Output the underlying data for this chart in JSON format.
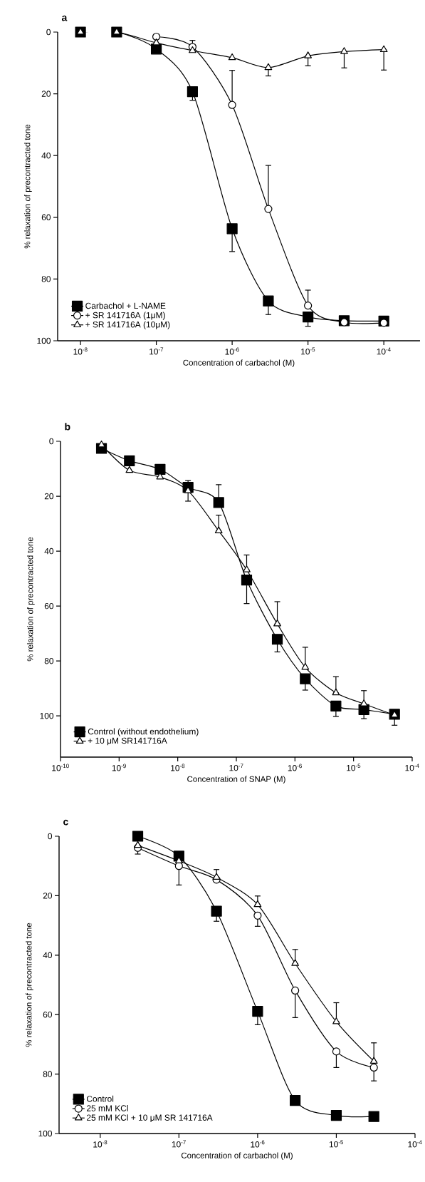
{
  "chart_data": [
    {
      "type": "line",
      "title": "a",
      "xlabel": "Concentration of carbachol (M)",
      "ylabel": "% relaxation of precontracted tone",
      "log": "x",
      "legend": "bottom left",
      "line_style": "solid",
      "xlim": [
        5e-09,
        0.0003
      ],
      "ylim": [
        100,
        0
      ],
      "xticks": [
        {
          "value": 1e-08,
          "label": "10$^{-8}$"
        },
        {
          "value": 1e-07,
          "label": "10$^{-7}$"
        },
        {
          "value": 1e-06,
          "label": "10$^{-6}$"
        },
        {
          "value": 1e-05,
          "label": "10$^{-5}$"
        },
        {
          "value": 0.0001,
          "label": "10$^{-4}$"
        }
      ],
      "yticks": [
        0,
        20,
        40,
        60,
        80,
        100
      ],
      "series": [
        {
          "name": "Carbachol + L-NAME",
          "color": "#000000",
          "marker": "square",
          "x": [
            1e-08,
            3e-08,
            1e-07,
            3e-07,
            1e-06,
            3e-06,
            1e-05,
            3e-05,
            0.0001
          ],
          "values": [
            0,
            0,
            5.5,
            19.3,
            63.7,
            87.1,
            92.3,
            93.5,
            93.6
          ],
          "errors": [
            null,
            null,
            null,
            [
              19.3,
              22.1
            ],
            [
              63.7,
              71.1
            ],
            [
              87.1,
              91.5
            ],
            [
              92.3,
              95.3
            ],
            null,
            null
          ]
        },
        {
          "name": "+ SR 141716A (1μM)",
          "color": "#000000",
          "marker": "circle",
          "x": [
            1e-07,
            3e-07,
            1e-06,
            3e-06,
            1e-05,
            3e-05,
            0.0001
          ],
          "values": [
            1.5,
            4.8,
            23.6,
            57.3,
            88.6,
            94.0,
            94.2
          ],
          "errors": [
            null,
            [
              2.7,
              4.8
            ],
            [
              12.4,
              23.6
            ],
            [
              43.2,
              57.3
            ],
            [
              83.6,
              88.6
            ],
            null,
            null
          ]
        },
        {
          "name": "+ SR 141716A (10μM)",
          "color": "#000000",
          "marker": "triangle",
          "x": [
            1e-08,
            3e-08,
            1e-07,
            3e-07,
            1e-06,
            3e-06,
            1e-05,
            3e-05,
            0.0001
          ],
          "values": [
            0,
            0,
            3.5,
            6.0,
            8.3,
            11.5,
            7.7,
            6.3,
            5.7
          ],
          "errors": [
            null,
            null,
            null,
            null,
            null,
            [
              11.5,
              14.2
            ],
            [
              7.7,
              10.9
            ],
            [
              6.3,
              11.6
            ],
            [
              5.7,
              12.3
            ]
          ]
        }
      ]
    },
    {
      "type": "line",
      "title": "b",
      "xlabel": "Concentration of SNAP (M)",
      "ylabel": "% relaxation of precontracted tone",
      "log": "x",
      "legend": "bottom left",
      "line_style": "solid",
      "xlim": [
        1e-10,
        0.0001
      ],
      "ylim": [
        115,
        0
      ],
      "xticks": [
        {
          "value": 1e-10,
          "label": "10$^{-10}$"
        },
        {
          "value": 1e-09,
          "label": "10$^{-9}$"
        },
        {
          "value": 1e-08,
          "label": "10$^{-8}$"
        },
        {
          "value": 1e-07,
          "label": "10$^{-7}$"
        },
        {
          "value": 1e-06,
          "label": "10$^{-6}$"
        },
        {
          "value": 1e-05,
          "label": "10$^{-5}$"
        },
        {
          "value": 0.0001,
          "label": "10$^{-4}$"
        }
      ],
      "yticks": [
        0,
        20,
        40,
        60,
        80,
        100
      ],
      "series": [
        {
          "name": "Control (without endothelium)",
          "color": "#000000",
          "marker": "square",
          "x": [
            5e-10,
            1.5e-09,
            5e-09,
            1.5e-08,
            5e-08,
            1.5e-07,
            5e-07,
            1.5e-06,
            5e-06,
            1.5e-05,
            5e-05
          ],
          "values": [
            2.6,
            7.1,
            10.2,
            16.8,
            22.3,
            50.5,
            72.1,
            86.5,
            96.4,
            97.7,
            99.4
          ],
          "errors": [
            null,
            null,
            null,
            [
              14.3,
              16.8
            ],
            [
              15.8,
              22.3
            ],
            [
              50.5,
              59.1
            ],
            [
              72.1,
              76.7
            ],
            [
              86.5,
              90.6
            ],
            [
              96.4,
              100.2
            ],
            [
              97.7,
              101
            ],
            null
          ]
        },
        {
          "name": "+ 10 μM SR141716A",
          "color": "#000000",
          "marker": "triangle",
          "x": [
            5e-10,
            1.5e-09,
            5e-09,
            1.5e-08,
            5e-08,
            1.5e-07,
            5e-07,
            1.5e-06,
            5e-06,
            1.5e-05,
            5e-05
          ],
          "values": [
            1.3,
            10.6,
            13.0,
            18.0,
            32.6,
            46.8,
            66.5,
            82.3,
            91.6,
            95.6,
            99.7
          ],
          "errors": [
            null,
            null,
            null,
            [
              18.0,
              21.8
            ],
            [
              26.9,
              32.6
            ],
            [
              41.4,
              46.8
            ],
            [
              58.4,
              66.5
            ],
            [
              75.0,
              82.3
            ],
            [
              85.7,
              91.6
            ],
            [
              90.8,
              95.6
            ],
            [
              99.7,
              103.4
            ]
          ]
        }
      ]
    },
    {
      "type": "line",
      "title": "c",
      "xlabel": "Concentration of carbachol (M)",
      "ylabel": "% relaxation of precontracted tone",
      "log": "x",
      "legend": "bottom left",
      "line_style": "solid",
      "xlim": [
        3e-09,
        0.0001
      ],
      "ylim": [
        100,
        0
      ],
      "xticks": [
        {
          "value": 1e-08,
          "label": "10$^{-8}$"
        },
        {
          "value": 1e-07,
          "label": "10$^{-7}$"
        },
        {
          "value": 1e-06,
          "label": "10$^{-6}$"
        },
        {
          "value": 1e-05,
          "label": "10$^{-5}$"
        },
        {
          "value": 0.0001,
          "label": "10$^{-4}$"
        }
      ],
      "yticks": [
        0,
        20,
        40,
        60,
        80,
        100
      ],
      "series": [
        {
          "name": "Control",
          "color": "#000000",
          "marker": "square",
          "x": [
            3e-08,
            1e-07,
            3e-07,
            1e-06,
            3e-06,
            1e-05,
            3e-05
          ],
          "values": [
            0,
            6.7,
            25.2,
            58.9,
            88.9,
            93.9,
            94.3
          ],
          "errors": [
            null,
            null,
            [
              25.2,
              28.6
            ],
            [
              58.9,
              63.4
            ],
            null,
            null,
            null
          ]
        },
        {
          "name": "25 mM KCl",
          "color": "#000000",
          "marker": "circle",
          "x": [
            3e-08,
            1e-07,
            3e-07,
            1e-06,
            3e-06,
            1e-05,
            3e-05
          ],
          "values": [
            3.9,
            10.0,
            14.6,
            26.7,
            51.9,
            72.4,
            77.8
          ],
          "errors": [
            [
              3.9,
              6.0
            ],
            [
              10.0,
              16.4
            ],
            null,
            [
              26.7,
              30.3
            ],
            [
              51.9,
              61.0
            ],
            [
              72.4,
              77.8
            ],
            [
              77.8,
              82.3
            ]
          ]
        },
        {
          "name": "25 mM KCl + 10 μM SR 141716A",
          "color": "#000000",
          "marker": "triangle",
          "x": [
            3e-08,
            1e-07,
            3e-07,
            1e-06,
            3e-06,
            1e-05,
            3e-05
          ],
          "values": [
            3.1,
            8.3,
            13.8,
            23.0,
            42.8,
            62.4,
            75.7
          ],
          "errors": [
            null,
            null,
            [
              11.2,
              13.8
            ],
            [
              20.1,
              23.0
            ],
            [
              38.1,
              42.8
            ],
            [
              56.0,
              62.4
            ],
            [
              69.5,
              75.7
            ]
          ]
        }
      ]
    }
  ]
}
